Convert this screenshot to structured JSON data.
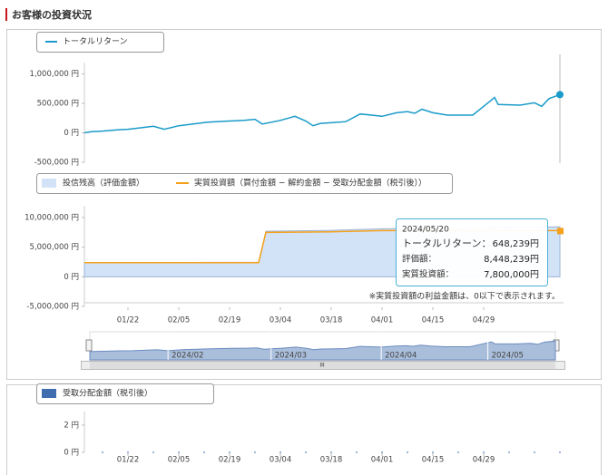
{
  "header": {
    "title": "お客様の投資状況"
  },
  "chart_data": [
    {
      "type": "line",
      "legend": "トータルリターン",
      "xlim": [
        "01/10",
        "05/20"
      ],
      "x": [
        "01/10",
        "01/12",
        "01/15",
        "01/19",
        "01/22",
        "01/26",
        "01/29",
        "02/01",
        "02/05",
        "02/09",
        "02/13",
        "02/19",
        "02/23",
        "02/26",
        "02/28",
        "03/04",
        "03/08",
        "03/11",
        "03/13",
        "03/15",
        "03/18",
        "03/22",
        "03/26",
        "04/01",
        "04/05",
        "04/08",
        "04/10",
        "04/12",
        "04/15",
        "04/19",
        "04/26",
        "04/29",
        "05/02",
        "05/03",
        "05/09",
        "05/13",
        "05/15",
        "05/17",
        "05/20"
      ],
      "series": [
        {
          "name": "トータルリターン",
          "color": "#1a9bc9",
          "values": [
            0,
            20000,
            30000,
            50000,
            60000,
            90000,
            110000,
            60000,
            120000,
            150000,
            180000,
            200000,
            210000,
            230000,
            150000,
            210000,
            280000,
            200000,
            120000,
            160000,
            170000,
            190000,
            320000,
            280000,
            340000,
            360000,
            330000,
            400000,
            340000,
            300000,
            300000,
            450000,
            600000,
            480000,
            470000,
            510000,
            450000,
            580000,
            648239
          ]
        }
      ],
      "ylim": [
        -500000,
        1100000
      ],
      "yticks": [
        {
          "value": 1000000,
          "label": "1,000,000 円"
        },
        {
          "value": 500000,
          "label": "500,000 円"
        },
        {
          "value": 0,
          "label": "0 円"
        },
        {
          "value": -500000,
          "label": "-500,000 円"
        }
      ]
    },
    {
      "type": "line",
      "xlim": [
        "01/10",
        "05/20"
      ],
      "x": [
        "01/10",
        "02/27",
        "02/29",
        "03/18",
        "04/01",
        "05/20"
      ],
      "series": [
        {
          "name": "投信残高（評価金額）",
          "color": "#9bb4d6",
          "fill": "#d3e3f7",
          "values": [
            2400000,
            2450000,
            7700000,
            7850000,
            8100000,
            8448239
          ]
        },
        {
          "name": "実質投資額（買付金額 − 解約金額 − 受取分配金額（税引後））",
          "color": "#f5a11c",
          "values": [
            2400000,
            2400000,
            7500000,
            7600000,
            7800000,
            7800000
          ]
        }
      ],
      "ylim": [
        -5000000,
        11000000
      ],
      "yticks": [
        {
          "value": 10000000,
          "label": "10,000,000 円"
        },
        {
          "value": 5000000,
          "label": "5,000,000 円"
        },
        {
          "value": 0,
          "label": "0 円"
        },
        {
          "value": -5000000,
          "label": "-5,000,000 円"
        }
      ],
      "xticks": [
        "01/22",
        "02/05",
        "02/19",
        "03/04",
        "03/18",
        "04/01",
        "04/15",
        "04/29"
      ],
      "note": "※実質投資額の利益金額は、0以下で表示されます。",
      "tooltip": {
        "date": "2024/05/20",
        "rows": [
          {
            "label": "トータルリターン：",
            "value": "648,239円"
          },
          {
            "label": "評価額：",
            "value": "8,448,239円"
          },
          {
            "label": "実質投資額：",
            "value": "7,800,000円"
          }
        ]
      },
      "navigator": {
        "labels": [
          "2024/02",
          "2024/03",
          "2024/04",
          "2024/05"
        ]
      }
    },
    {
      "type": "bar",
      "xlim": [
        "01/10",
        "05/20"
      ],
      "x": [
        "01/15",
        "01/22",
        "01/29",
        "02/05",
        "02/12",
        "02/19",
        "02/26",
        "03/04",
        "03/11",
        "03/18",
        "03/25",
        "04/01",
        "04/08",
        "04/15",
        "04/22",
        "04/29",
        "05/06",
        "05/13",
        "05/20"
      ],
      "series": [
        {
          "name": "受取分配金額（税引後）",
          "color": "#3f6db0",
          "values": [
            0,
            0,
            0,
            0,
            0,
            0,
            0,
            0,
            0,
            0,
            0,
            0,
            0,
            0,
            0,
            0,
            0,
            0,
            0
          ]
        }
      ],
      "ylim": [
        0,
        2.6
      ],
      "yticks": [
        {
          "value": 2,
          "label": "2 円"
        },
        {
          "value": 0,
          "label": "0 円"
        }
      ],
      "xticks": [
        "01/22",
        "02/05",
        "02/19",
        "03/04",
        "03/18",
        "04/01",
        "04/15",
        "04/29"
      ]
    }
  ]
}
